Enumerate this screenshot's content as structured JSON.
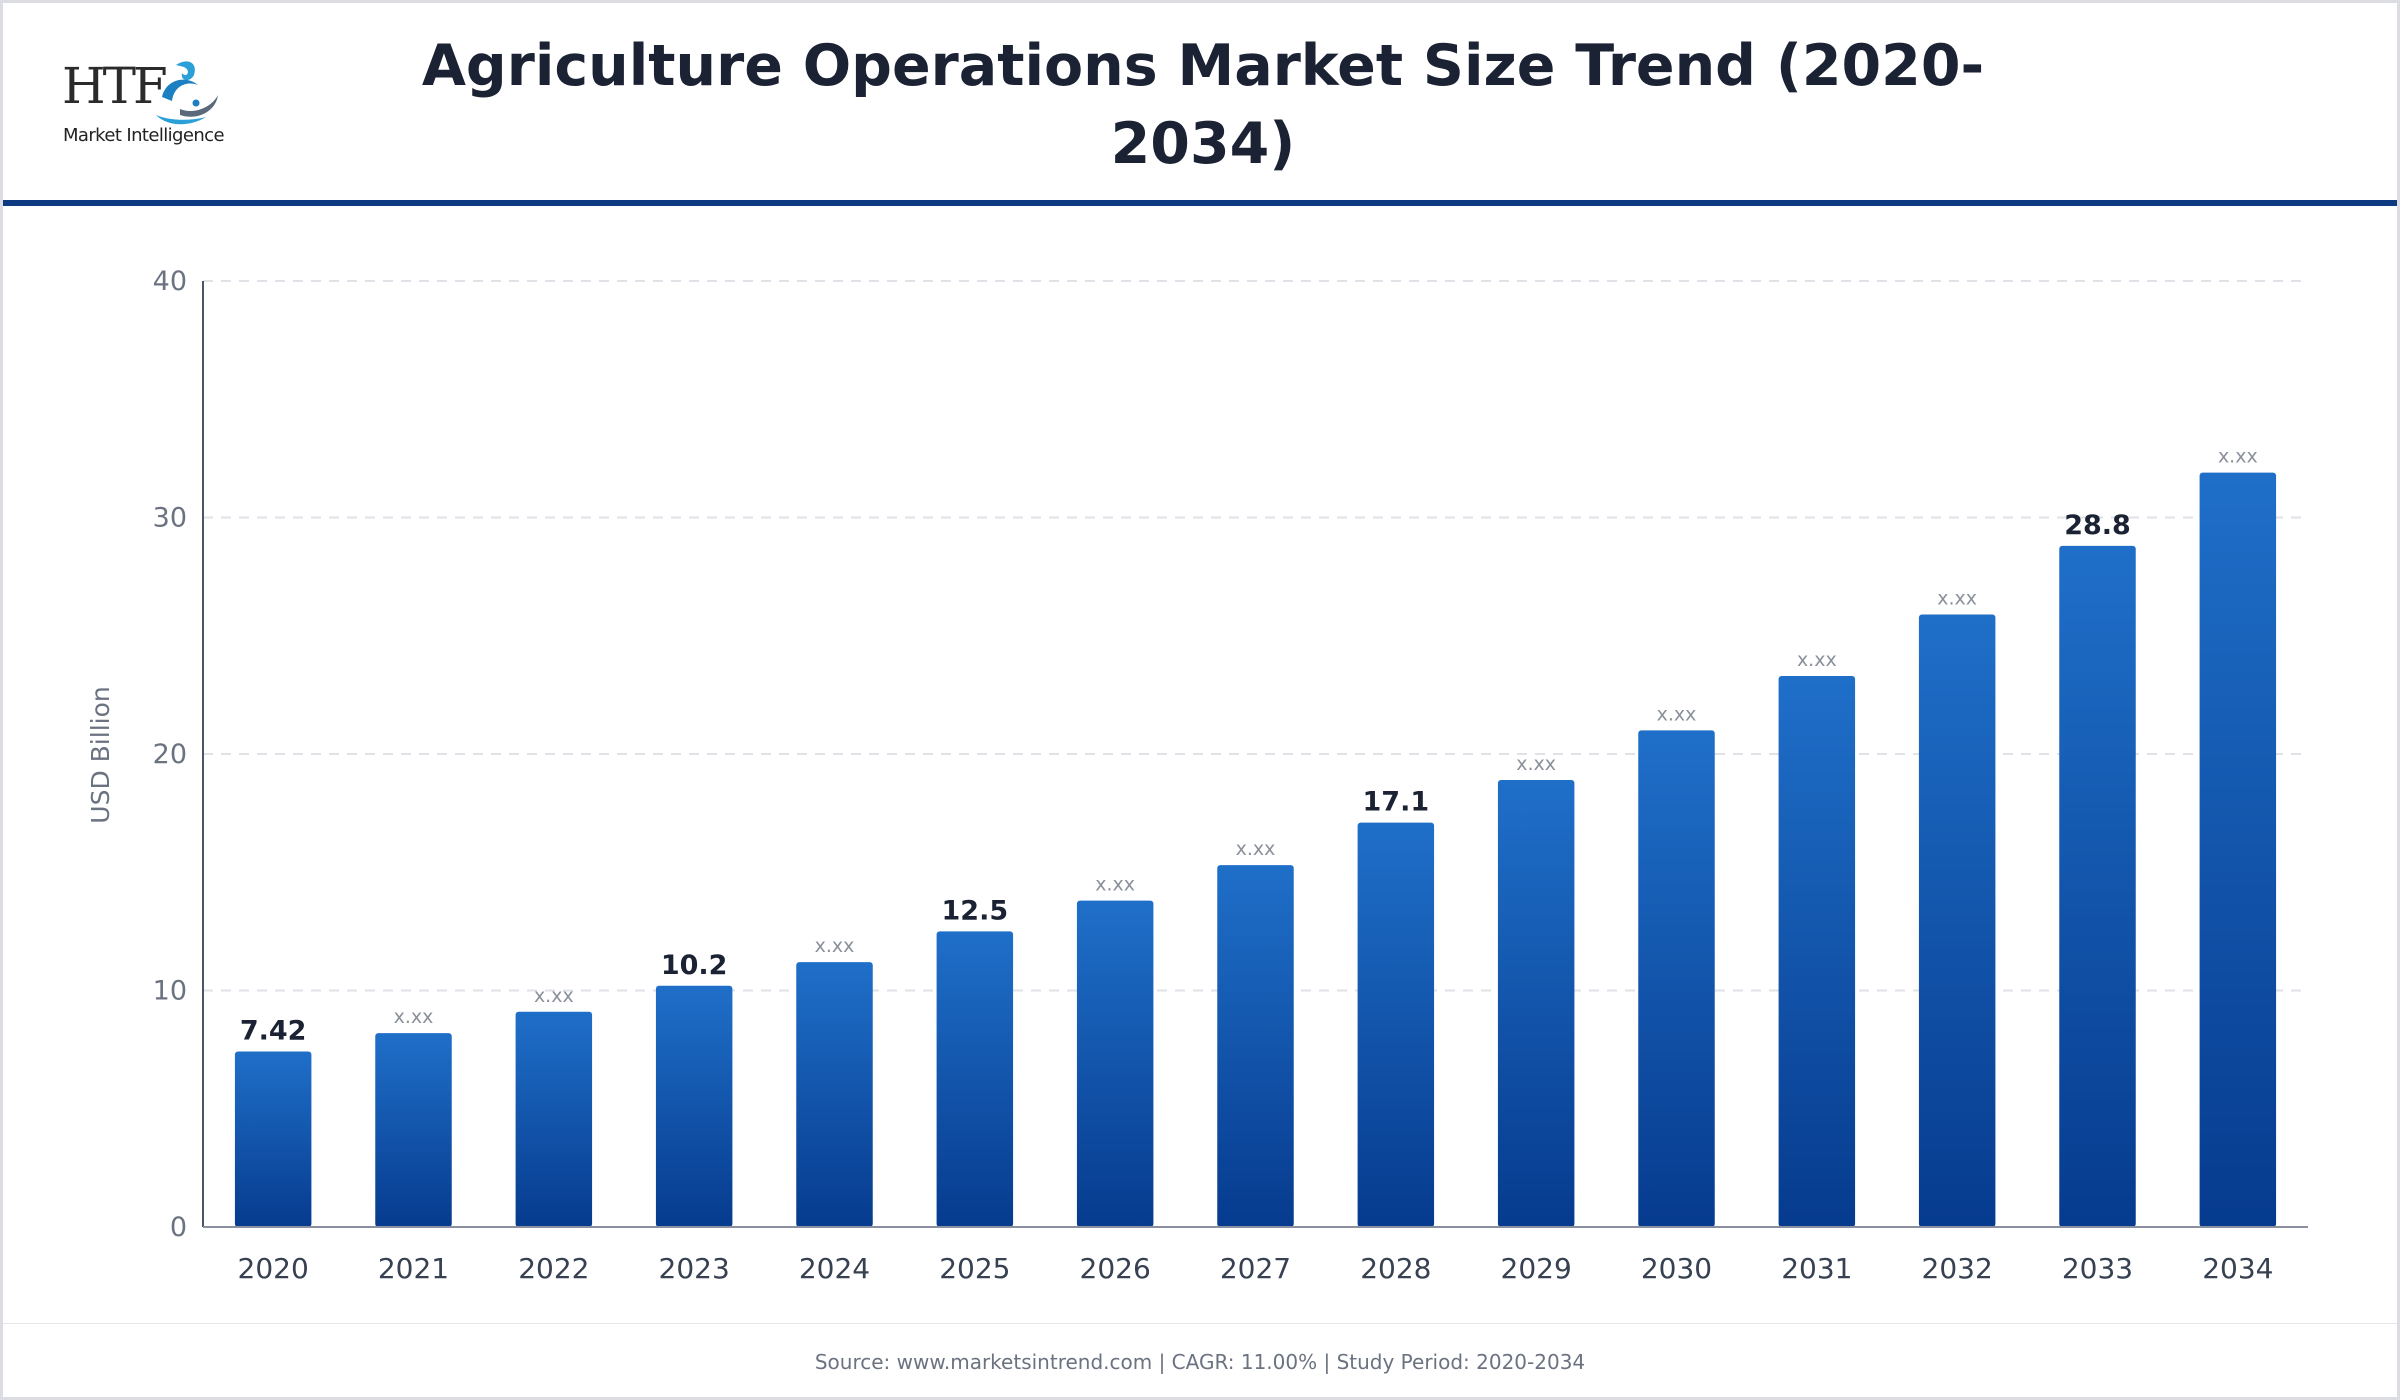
{
  "logo": {
    "brand": "HTF",
    "tagline": "Market Intelligence"
  },
  "header": {
    "title": "Agriculture Operations Market Size Trend (2020-2034)"
  },
  "colors": {
    "bar_top": "#1f6fc9",
    "bar_bottom": "#063b8e",
    "header_rule": "#0d3a80",
    "title": "#1b2233",
    "axis_text": "#6b7280",
    "tick_label": "#374151",
    "value_label": "#1b2233",
    "placeholder_label": "#8a909a",
    "grid": "#dfe2e7"
  },
  "chart_data": {
    "type": "bar",
    "title": "Agriculture Operations Market Size Trend (2020-2034)",
    "xlabel": "",
    "ylabel": "USD Billion",
    "ylim": [
      0,
      40
    ],
    "yticks": [
      0,
      10,
      20,
      30,
      40
    ],
    "grid": true,
    "categories": [
      "2020",
      "2021",
      "2022",
      "2023",
      "2024",
      "2025",
      "2026",
      "2027",
      "2028",
      "2029",
      "2030",
      "2031",
      "2032",
      "2033",
      "2034"
    ],
    "values": [
      7.42,
      8.2,
      9.1,
      10.2,
      11.2,
      12.5,
      13.8,
      15.3,
      17.1,
      18.9,
      21.0,
      23.3,
      25.9,
      28.8,
      31.9
    ],
    "labels": [
      "7.42",
      "x.xx",
      "x.xx",
      "10.2",
      "x.xx",
      "12.5",
      "x.xx",
      "x.xx",
      "17.1",
      "x.xx",
      "x.xx",
      "x.xx",
      "x.xx",
      "28.8",
      "x.xx"
    ],
    "label_style": [
      "value",
      "placeholder",
      "placeholder",
      "value",
      "placeholder",
      "value",
      "placeholder",
      "placeholder",
      "value",
      "placeholder",
      "placeholder",
      "placeholder",
      "placeholder",
      "value",
      "placeholder"
    ]
  },
  "footer": {
    "text": "Source: www.marketsintrend.com  |  CAGR: 11.00%  |  Study Period: 2020-2034"
  }
}
